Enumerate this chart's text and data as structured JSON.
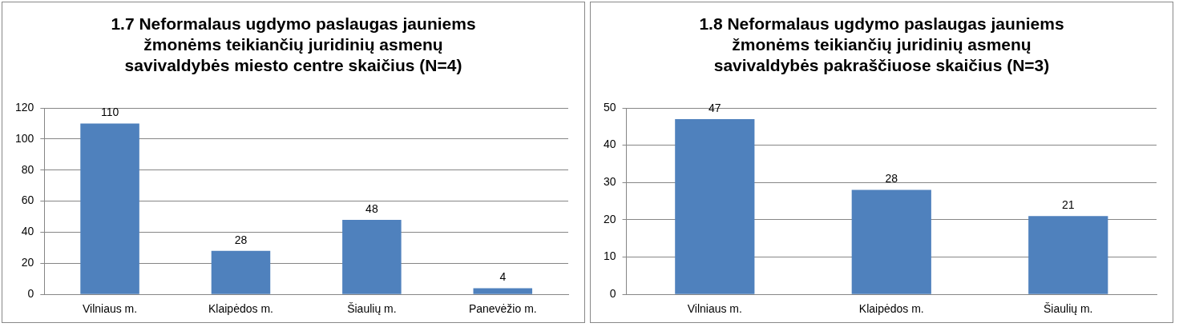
{
  "chart_data": [
    {
      "type": "bar",
      "title": "1.7 Neformalaus ugdymo paslaugas jauniems žmonėms teikiančių juridinių asmenų savivaldybės miesto centre skaičius (N=4)",
      "categories": [
        "Vilniaus m.",
        "Klaipėdos m.",
        "Šiaulių m.",
        "Panevėžio m."
      ],
      "values": [
        110,
        28,
        48,
        4
      ],
      "color": "#4f81bd",
      "ylim": [
        0,
        120
      ],
      "yticks": [
        0,
        20,
        40,
        60,
        80,
        100,
        120
      ],
      "grid": "y",
      "data_labels": true
    },
    {
      "type": "bar",
      "title": "1.8 Neformalaus ugdymo paslaugas jauniems žmonėms teikiančių juridinių asmenų savivaldybės pakraščiuose skaičius (N=3)",
      "categories": [
        "Vilniaus m.",
        "Klaipėdos m.",
        "Šiaulių m."
      ],
      "values": [
        47,
        28,
        21
      ],
      "color": "#4f81bd",
      "ylim": [
        0,
        50
      ],
      "yticks": [
        0,
        10,
        20,
        30,
        40,
        50
      ],
      "grid": "y",
      "data_labels": true
    }
  ]
}
